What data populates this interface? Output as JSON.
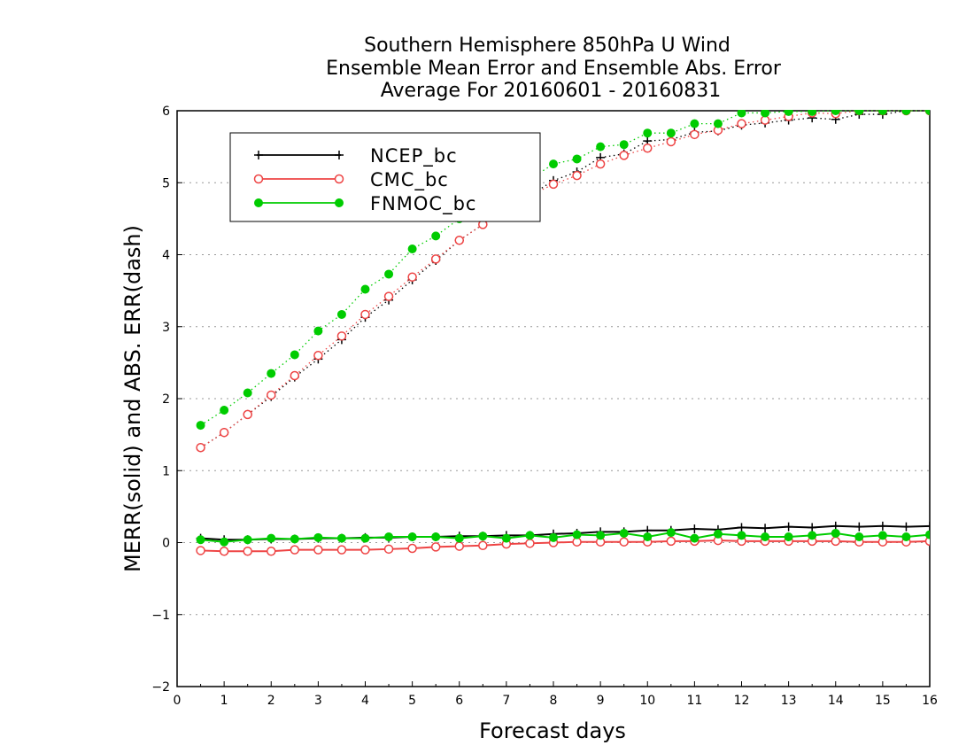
{
  "chart_data": {
    "type": "line",
    "title": [
      "Southern Hemisphere 850hPa U Wind",
      "Ensemble Mean Error and Ensemble Abs. Error",
      "Average For 20160601 - 20160831"
    ],
    "xlabel": "Forecast days",
    "ylabel": "MERR(solid) and ABS. ERR(dash)",
    "xlim": [
      0,
      16
    ],
    "ylim": [
      -2,
      6
    ],
    "xticks": [
      "0",
      "1",
      "2",
      "3",
      "4",
      "5",
      "6",
      "7",
      "8",
      "9",
      "10",
      "11",
      "12",
      "13",
      "14",
      "15",
      "16"
    ],
    "yticks": [
      "-2",
      "-1",
      "0",
      "1",
      "2",
      "3",
      "4",
      "5",
      "6"
    ],
    "grid": "horizontal dotted",
    "legend_position": "top-left",
    "x": [
      0.5,
      1,
      1.5,
      2,
      2.5,
      3,
      3.5,
      4,
      4.5,
      5,
      5.5,
      6,
      6.5,
      7,
      7.5,
      8,
      8.5,
      9,
      9.5,
      10,
      10.5,
      11,
      11.5,
      12,
      12.5,
      13,
      13.5,
      14,
      14.5,
      15,
      15.5,
      16
    ],
    "series": [
      {
        "name": "NCEP_bc",
        "color": "#000000",
        "marker": "plus",
        "merr": [
          0.06,
          0.04,
          0.04,
          0.05,
          0.05,
          0.06,
          0.06,
          0.07,
          0.07,
          0.08,
          0.08,
          0.09,
          0.09,
          0.1,
          0.1,
          0.12,
          0.13,
          0.15,
          0.15,
          0.17,
          0.17,
          0.19,
          0.18,
          0.21,
          0.2,
          0.22,
          0.21,
          0.23,
          0.22,
          0.23,
          0.22,
          0.23
        ],
        "abs_err": [
          1.32,
          1.53,
          1.78,
          2.03,
          2.3,
          2.55,
          2.82,
          3.13,
          3.37,
          3.65,
          3.92,
          4.2,
          4.42,
          4.6,
          4.82,
          5.03,
          5.15,
          5.35,
          5.4,
          5.58,
          5.6,
          5.7,
          5.72,
          5.8,
          5.83,
          5.87,
          5.9,
          5.88,
          5.95,
          5.95,
          6.0,
          6.0
        ]
      },
      {
        "name": "CMC_bc",
        "color": "#ee4444",
        "marker": "open-circle",
        "merr": [
          -0.11,
          -0.12,
          -0.12,
          -0.12,
          -0.1,
          -0.1,
          -0.1,
          -0.1,
          -0.09,
          -0.08,
          -0.06,
          -0.05,
          -0.04,
          -0.02,
          -0.01,
          0.0,
          0.01,
          0.01,
          0.01,
          0.01,
          0.02,
          0.02,
          0.03,
          0.02,
          0.02,
          0.02,
          0.02,
          0.02,
          0.01,
          0.01,
          0.01,
          0.02
        ],
        "abs_err": [
          1.32,
          1.53,
          1.78,
          2.05,
          2.32,
          2.6,
          2.87,
          3.17,
          3.42,
          3.69,
          3.94,
          4.2,
          4.42,
          4.6,
          4.82,
          4.98,
          5.1,
          5.26,
          5.38,
          5.48,
          5.57,
          5.67,
          5.73,
          5.82,
          5.87,
          5.92,
          5.97,
          5.96,
          6.0,
          6.0,
          6.0,
          6.0
        ]
      },
      {
        "name": "FNMOC_bc",
        "color": "#00cc00",
        "marker": "filled-circle",
        "merr": [
          0.04,
          0.01,
          0.04,
          0.06,
          0.05,
          0.07,
          0.06,
          0.06,
          0.08,
          0.08,
          0.08,
          0.06,
          0.09,
          0.06,
          0.1,
          0.07,
          0.11,
          0.1,
          0.13,
          0.08,
          0.14,
          0.06,
          0.12,
          0.1,
          0.08,
          0.08,
          0.1,
          0.13,
          0.08,
          0.1,
          0.08,
          0.11
        ],
        "abs_err": [
          1.63,
          1.84,
          2.08,
          2.35,
          2.61,
          2.94,
          3.17,
          3.52,
          3.73,
          4.08,
          4.26,
          4.5,
          4.7,
          4.9,
          5.05,
          5.26,
          5.33,
          5.5,
          5.53,
          5.69,
          5.69,
          5.82,
          5.82,
          5.97,
          5.97,
          5.99,
          5.99,
          6.0,
          6.0,
          6.0,
          6.0,
          6.0
        ]
      }
    ]
  }
}
